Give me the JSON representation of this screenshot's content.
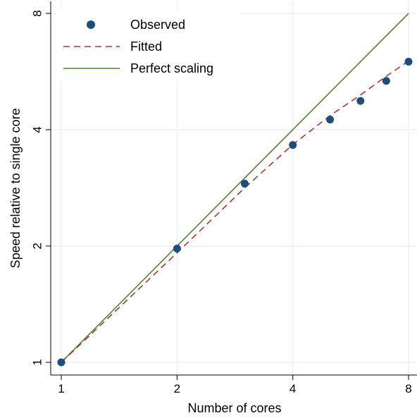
{
  "chart_data": {
    "type": "scatter",
    "title": "",
    "xlabel": "Number of cores",
    "ylabel": "Speed relative to single core",
    "xscale": "log2",
    "yscale": "log2",
    "xlim": [
      1,
      8
    ],
    "ylim": [
      1,
      8
    ],
    "xticks": [
      1,
      2,
      4,
      8
    ],
    "yticks": [
      1,
      2,
      4,
      8
    ],
    "grid": true,
    "legend_position": "top-left",
    "series": [
      {
        "name": "Observed",
        "kind": "points",
        "color": "#1f4e79",
        "x": [
          1,
          2,
          3,
          4,
          5,
          6,
          7,
          8
        ],
        "y": [
          1.0,
          1.97,
          2.9,
          3.65,
          4.25,
          4.75,
          5.35,
          6.0
        ]
      },
      {
        "name": "Fitted",
        "kind": "dashed-line",
        "color": "#9b3a3a",
        "x": [
          1,
          2,
          3,
          4,
          5,
          6,
          7,
          8
        ],
        "y": [
          1.0,
          1.92,
          2.83,
          3.66,
          4.35,
          4.92,
          5.5,
          6.02
        ]
      },
      {
        "name": "Perfect scaling",
        "kind": "line",
        "color": "#5a7d3a",
        "x": [
          1,
          8
        ],
        "y": [
          1,
          8
        ]
      }
    ]
  }
}
